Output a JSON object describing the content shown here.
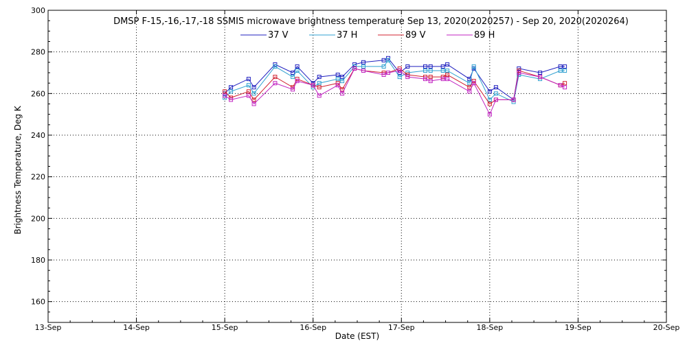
{
  "chart_data": {
    "type": "line",
    "title": "DMSP F-15,-16,-17,-18 SSMIS microwave brightness temperature Sep 13, 2020(2020257) - Sep 20, 2020(2020264)",
    "xlabel": "Date (EST)",
    "ylabel": "Brightness Temperature, Deg K",
    "xlim": [
      0,
      7
    ],
    "ylim": [
      150,
      300
    ],
    "x_tick_labels": [
      "13-Sep",
      "14-Sep",
      "15-Sep",
      "16-Sep",
      "17-Sep",
      "18-Sep",
      "19-Sep",
      "20-Sep"
    ],
    "y_ticks": [
      160,
      180,
      200,
      220,
      240,
      260,
      280,
      300
    ],
    "grid": true,
    "legend_position": "top",
    "series": [
      {
        "name": "37 V",
        "color": "#1f1fbf",
        "x": [
          2.0,
          2.07,
          2.27,
          2.33,
          2.57,
          2.77,
          2.82,
          3.0,
          3.07,
          3.28,
          3.33,
          3.47,
          3.57,
          3.8,
          3.85,
          3.98,
          4.07,
          4.27,
          4.33,
          4.47,
          4.52,
          4.77,
          4.82,
          5.0,
          5.07,
          5.27,
          5.33,
          5.57,
          5.8,
          5.85
        ],
        "values": [
          260,
          263,
          267,
          263,
          274,
          270,
          273,
          265,
          268,
          269,
          268,
          274,
          275,
          276,
          277,
          270,
          273,
          273,
          273,
          273,
          274,
          267,
          272,
          261,
          263,
          257,
          272,
          270,
          273,
          273
        ]
      },
      {
        "name": "37 H",
        "color": "#2fa0d0",
        "x": [
          2.0,
          2.07,
          2.27,
          2.33,
          2.57,
          2.77,
          2.82,
          3.0,
          3.07,
          3.28,
          3.33,
          3.47,
          3.57,
          3.8,
          3.85,
          3.98,
          4.07,
          4.27,
          4.33,
          4.47,
          4.52,
          4.77,
          4.82,
          5.0,
          5.07,
          5.27,
          5.33,
          5.57,
          5.8,
          5.85
        ],
        "values": [
          258,
          261,
          264,
          260,
          273,
          268,
          271,
          263,
          265,
          267,
          266,
          273,
          273,
          273,
          276,
          268,
          270,
          271,
          271,
          271,
          271,
          265,
          273,
          257,
          260,
          256,
          269,
          267,
          271,
          271
        ]
      },
      {
        "name": "89 V",
        "color": "#d0202f",
        "x": [
          2.0,
          2.07,
          2.27,
          2.33,
          2.57,
          2.77,
          2.82,
          3.0,
          3.07,
          3.28,
          3.33,
          3.47,
          3.57,
          3.8,
          3.85,
          3.98,
          4.07,
          4.27,
          4.33,
          4.47,
          4.52,
          4.77,
          4.82,
          5.0,
          5.07,
          5.27,
          5.33,
          5.57,
          5.8,
          5.85
        ],
        "values": [
          261,
          258,
          261,
          257,
          268,
          263,
          267,
          264,
          263,
          265,
          262,
          272,
          271,
          270,
          270,
          272,
          269,
          268,
          268,
          268,
          269,
          263,
          266,
          255,
          257,
          257,
          271,
          268,
          264,
          265
        ]
      },
      {
        "name": "89 H",
        "color": "#c020c0",
        "x": [
          2.0,
          2.07,
          2.27,
          2.33,
          2.57,
          2.77,
          2.82,
          3.0,
          3.07,
          3.28,
          3.33,
          3.47,
          3.57,
          3.8,
          3.85,
          3.98,
          4.07,
          4.27,
          4.33,
          4.47,
          4.52,
          4.77,
          4.82,
          5.0,
          5.07,
          5.27,
          5.33,
          5.57,
          5.8,
          5.85
        ],
        "values": [
          259,
          257,
          259,
          255,
          265,
          262,
          266,
          264,
          259,
          264,
          260,
          272,
          271,
          269,
          270,
          271,
          268,
          267,
          266,
          267,
          267,
          261,
          265,
          250,
          257,
          257,
          270,
          268,
          264,
          263
        ]
      }
    ]
  }
}
